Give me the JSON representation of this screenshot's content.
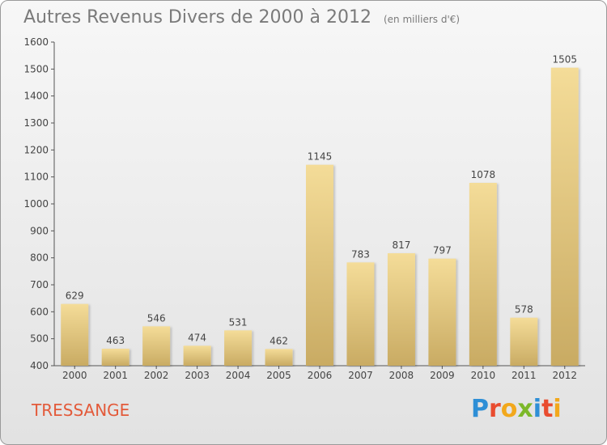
{
  "chart_data": {
    "type": "bar",
    "title": "Autres Revenus Divers de 2000 à 2012",
    "subtitle": "(en milliers d'€)",
    "xlabel": "",
    "ylabel": "",
    "categories": [
      "2000",
      "2001",
      "2002",
      "2003",
      "2004",
      "2005",
      "2006",
      "2007",
      "2008",
      "2009",
      "2010",
      "2011",
      "2012"
    ],
    "values": [
      629,
      463,
      546,
      474,
      531,
      462,
      1145,
      783,
      817,
      797,
      1078,
      578,
      1505
    ],
    "ylim": [
      400,
      1600
    ],
    "yticks": [
      400,
      500,
      600,
      700,
      800,
      900,
      1000,
      1100,
      1200,
      1300,
      1400,
      1500,
      1600
    ],
    "grid": false,
    "bar_color_top": "#f4dc98",
    "bar_color_bottom": "#c9ab63"
  },
  "footer": {
    "commune": "TRESSANGE",
    "logo": [
      "P",
      "r",
      "o",
      "x",
      "i",
      "t",
      "i"
    ],
    "logo_colors": [
      "#2e8fd6",
      "#e94c2f",
      "#f2a81c",
      "#7cb829",
      "#2e8fd6",
      "#e94c2f",
      "#f2a81c"
    ]
  },
  "colors": {
    "commune_text": "#e35a3a",
    "title_text": "#7a7a7a"
  }
}
